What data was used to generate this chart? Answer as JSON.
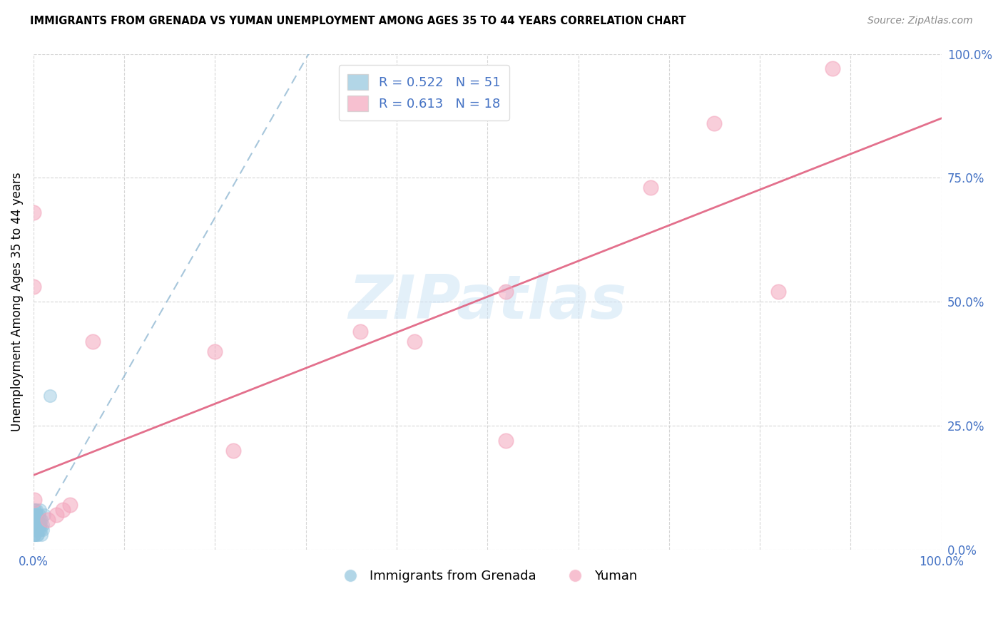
{
  "title": "IMMIGRANTS FROM GRENADA VS YUMAN UNEMPLOYMENT AMONG AGES 35 TO 44 YEARS CORRELATION CHART",
  "source": "Source: ZipAtlas.com",
  "ylabel": "Unemployment Among Ages 35 to 44 years",
  "xlim": [
    0.0,
    1.0
  ],
  "ylim": [
    0.0,
    1.0
  ],
  "blue_color": "#92c5de",
  "pink_color": "#f4a6bd",
  "legend_label1": "Immigrants from Grenada",
  "legend_label2": "Yuman",
  "blue_R": "0.522",
  "blue_N": "51",
  "pink_R": "0.613",
  "pink_N": "18",
  "accent_color": "#4472c4",
  "watermark_color": "#cde4f5",
  "background": "#ffffff",
  "blue_points_x": [
    0.0,
    0.0,
    0.001,
    0.001,
    0.001,
    0.001,
    0.001,
    0.001,
    0.001,
    0.001,
    0.002,
    0.002,
    0.002,
    0.002,
    0.002,
    0.002,
    0.002,
    0.002,
    0.002,
    0.002,
    0.003,
    0.003,
    0.003,
    0.003,
    0.003,
    0.003,
    0.003,
    0.003,
    0.004,
    0.004,
    0.004,
    0.004,
    0.004,
    0.005,
    0.005,
    0.005,
    0.005,
    0.006,
    0.006,
    0.006,
    0.007,
    0.007,
    0.007,
    0.008,
    0.008,
    0.009,
    0.009,
    0.01,
    0.01,
    0.012,
    0.018
  ],
  "blue_points_y": [
    0.04,
    0.06,
    0.03,
    0.05,
    0.07,
    0.04,
    0.08,
    0.05,
    0.06,
    0.03,
    0.05,
    0.07,
    0.04,
    0.06,
    0.05,
    0.08,
    0.04,
    0.05,
    0.06,
    0.03,
    0.05,
    0.07,
    0.04,
    0.06,
    0.05,
    0.08,
    0.04,
    0.05,
    0.06,
    0.03,
    0.05,
    0.04,
    0.07,
    0.06,
    0.05,
    0.04,
    0.03,
    0.05,
    0.07,
    0.04,
    0.06,
    0.05,
    0.08,
    0.04,
    0.05,
    0.06,
    0.03,
    0.05,
    0.04,
    0.07,
    0.31
  ],
  "pink_points_x": [
    0.0,
    0.0,
    0.001,
    0.025,
    0.032,
    0.065,
    0.22,
    0.36,
    0.42,
    0.52,
    0.68,
    0.75,
    0.82,
    0.88,
    0.52,
    0.016,
    0.04,
    0.2
  ],
  "pink_points_y": [
    0.68,
    0.53,
    0.1,
    0.07,
    0.08,
    0.42,
    0.2,
    0.44,
    0.42,
    0.52,
    0.73,
    0.86,
    0.52,
    0.97,
    0.22,
    0.06,
    0.09,
    0.4
  ],
  "blue_trend_intercept": 0.03,
  "blue_trend_slope": 3.2,
  "pink_trend_intercept": 0.15,
  "pink_trend_slope": 0.72
}
